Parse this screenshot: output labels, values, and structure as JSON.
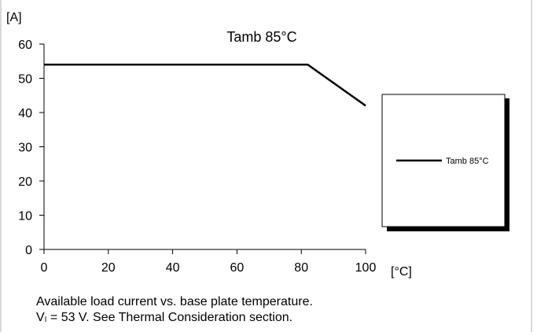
{
  "chart_data": {
    "type": "line",
    "title": "Tamb 85°C",
    "ylabel": "[A]",
    "xlabel": "[°C]",
    "xlim": [
      0,
      100
    ],
    "ylim": [
      0,
      60
    ],
    "xticks": [
      0,
      20,
      40,
      60,
      80,
      100
    ],
    "yticks": [
      0,
      10,
      20,
      30,
      40,
      50,
      60
    ],
    "grid": "none",
    "legend_position": "right",
    "series": [
      {
        "name": "Tamb 85°C",
        "color": "#000000",
        "x": [
          0,
          82,
          100
        ],
        "y": [
          54,
          54,
          42
        ]
      }
    ]
  },
  "caption": {
    "line1": "Available load current vs. base plate temperature.",
    "line2_prefix": "V",
    "line2_subscript": "I",
    "line2_suffix": " = 53 V. See Thermal Consideration section."
  }
}
